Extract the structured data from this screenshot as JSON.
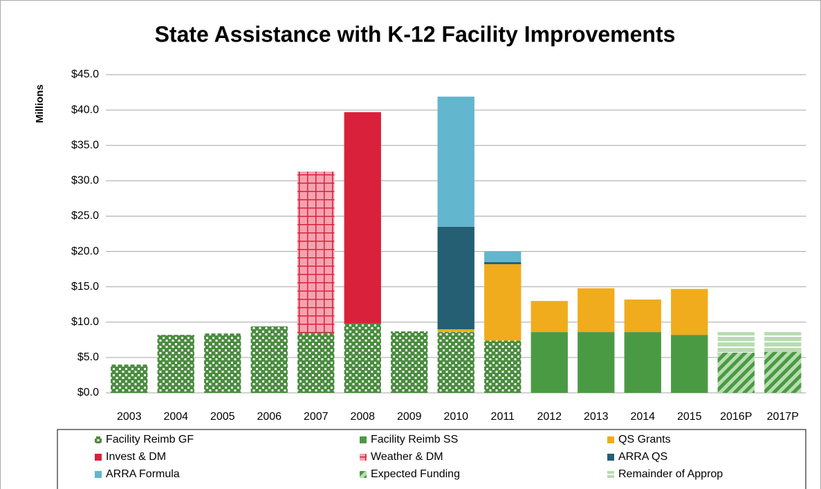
{
  "chart_data": {
    "type": "stacked_bar",
    "title": "State Assistance with K-12 Facility Improvements",
    "y_label": "Millions",
    "categories": [
      "2003",
      "2004",
      "2005",
      "2006",
      "2007",
      "2008",
      "2009",
      "2010",
      "2011",
      "2012",
      "2013",
      "2014",
      "2015",
      "2016P",
      "2017P"
    ],
    "series": [
      {
        "name": "Facility Reimb GF",
        "color": "#4a8c3f",
        "pattern": "dots",
        "values": [
          4.0,
          8.2,
          8.4,
          9.4,
          8.5,
          9.8,
          8.7,
          8.6,
          7.4,
          null,
          null,
          null,
          null,
          null,
          null
        ]
      },
      {
        "name": "Facility Reimb SS",
        "color": "#4a9a44",
        "pattern": "solid",
        "values": [
          null,
          null,
          null,
          null,
          null,
          null,
          null,
          null,
          null,
          8.6,
          8.6,
          8.6,
          8.2,
          null,
          null
        ]
      },
      {
        "name": "QS Grants",
        "color": "#f0ac1d",
        "pattern": "solid",
        "values": [
          null,
          null,
          null,
          null,
          null,
          null,
          null,
          0.4,
          10.8,
          4.4,
          6.2,
          4.6,
          6.5,
          null,
          null
        ]
      },
      {
        "name": "Invest & DM",
        "color": "#d9213b",
        "pattern": "solid",
        "values": [
          null,
          null,
          null,
          null,
          null,
          29.9,
          null,
          null,
          null,
          null,
          null,
          null,
          null,
          null,
          null
        ]
      },
      {
        "name": "Weather & DM",
        "color": "#f4a3b0",
        "pattern": "grid",
        "values": [
          null,
          null,
          null,
          null,
          22.8,
          null,
          null,
          null,
          null,
          null,
          null,
          null,
          null,
          null,
          null
        ]
      },
      {
        "name": "ARRA QS",
        "color": "#245f73",
        "pattern": "solid",
        "values": [
          null,
          null,
          null,
          null,
          null,
          null,
          null,
          14.5,
          0.3,
          null,
          null,
          null,
          null,
          null,
          null
        ]
      },
      {
        "name": "ARRA Formula",
        "color": "#62b6cd",
        "pattern": "solid",
        "values": [
          null,
          null,
          null,
          null,
          null,
          null,
          null,
          18.4,
          1.5,
          null,
          null,
          null,
          null,
          null,
          null
        ]
      },
      {
        "name": "Expected Funding",
        "color": "#4a9a44",
        "pattern": "diagonal",
        "values": [
          null,
          null,
          null,
          null,
          null,
          null,
          null,
          null,
          null,
          null,
          null,
          null,
          null,
          5.7,
          5.8
        ]
      },
      {
        "name": "Remainder of Approp",
        "color": "#4a9a44",
        "pattern": "horizontal",
        "values": [
          null,
          null,
          null,
          null,
          null,
          null,
          null,
          null,
          null,
          null,
          null,
          null,
          null,
          2.9,
          2.8
        ]
      }
    ],
    "ylim": [
      0,
      45
    ],
    "yticks": [
      {
        "value": 0,
        "label": "$0.0"
      },
      {
        "value": 5,
        "label": "$5.0"
      },
      {
        "value": 10,
        "label": "$10.0"
      },
      {
        "value": 15,
        "label": "$15.0"
      },
      {
        "value": 20,
        "label": "$20.0"
      },
      {
        "value": 25,
        "label": "$25.0"
      },
      {
        "value": 30,
        "label": "$30.0"
      },
      {
        "value": 35,
        "label": "$35.0"
      },
      {
        "value": 40,
        "label": "$40.0"
      },
      {
        "value": 45,
        "label": "$45.0"
      }
    ],
    "grid": true,
    "legend": "bottom"
  }
}
